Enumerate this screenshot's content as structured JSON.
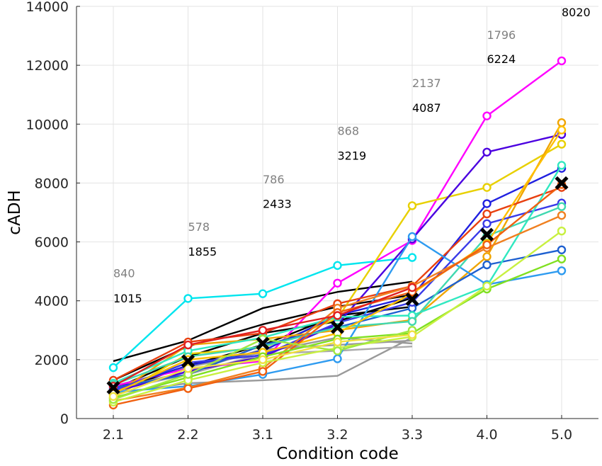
{
  "chart_data": {
    "type": "line",
    "title": "",
    "xlabel": "Condition code",
    "ylabel": "cADH",
    "categories": [
      "2.1",
      "2.2",
      "3.1",
      "3.2",
      "3.3",
      "4.0",
      "5.0"
    ],
    "ylim": [
      0,
      14000
    ],
    "yticks": [
      0,
      2000,
      4000,
      6000,
      8000,
      10000,
      12000,
      14000
    ],
    "grid": true,
    "legend": "none",
    "series": [
      {
        "color": "#ff00ff",
        "marker": true,
        "values": [
          1100,
          1700,
          1950,
          4600,
          6050,
          10280,
          12150
        ]
      },
      {
        "color": "#00e5ee",
        "marker": true,
        "values": [
          1730,
          4080,
          4240,
          5200,
          5470,
          null,
          null
        ]
      },
      {
        "color": "#e8d000",
        "marker": true,
        "values": [
          700,
          2200,
          2400,
          3400,
          7230,
          7850,
          9320
        ]
      },
      {
        "color": "#4b00e0",
        "marker": true,
        "values": [
          900,
          1600,
          2100,
          3200,
          6100,
          9050,
          9650
        ]
      },
      {
        "color": "#2020e0",
        "marker": true,
        "values": [
          1000,
          1800,
          2300,
          3500,
          4150,
          7300,
          8500
        ]
      },
      {
        "color": "#f0a500",
        "marker": true,
        "values": [
          800,
          2500,
          2700,
          3000,
          3350,
          5500,
          10050
        ]
      },
      {
        "color": "#e84010",
        "marker": true,
        "values": [
          1300,
          2600,
          2900,
          3900,
          4500,
          6950,
          7850
        ]
      },
      {
        "color": "#2e9bf0",
        "marker": true,
        "values": [
          900,
          1100,
          1500,
          2030,
          6180,
          4550,
          5020
        ]
      },
      {
        "color": "#1e60d0",
        "marker": true,
        "values": [
          1050,
          1500,
          2500,
          3100,
          3750,
          5220,
          5730
        ]
      },
      {
        "color": "#3a3ae8",
        "marker": true,
        "values": [
          950,
          1900,
          2150,
          3250,
          3950,
          6620,
          7320
        ]
      },
      {
        "color": "#30e8c0",
        "marker": true,
        "values": [
          1200,
          2300,
          2750,
          3450,
          3500,
          4500,
          8600
        ]
      },
      {
        "color": "#40d8b0",
        "marker": true,
        "values": [
          1150,
          2100,
          2450,
          3100,
          3300,
          6200,
          7200
        ]
      },
      {
        "color": "#ffc000",
        "marker": true,
        "values": [
          850,
          2000,
          2250,
          2900,
          4250,
          5950,
          9800
        ]
      },
      {
        "color": "#f08020",
        "marker": true,
        "values": [
          600,
          1050,
          1700,
          3750,
          4500,
          5800,
          6900
        ]
      },
      {
        "color": "#f06010",
        "marker": true,
        "values": [
          460,
          1020,
          1600,
          3600,
          4300,
          5900,
          7950
        ]
      },
      {
        "color": "#80e020",
        "marker": true,
        "values": [
          700,
          1400,
          2100,
          2700,
          2900,
          4400,
          5420
        ]
      },
      {
        "color": "#c8f040",
        "marker": true,
        "values": [
          560,
          1300,
          1900,
          2400,
          2780,
          4500,
          6370
        ]
      },
      {
        "color": "#a0e840",
        "marker": true,
        "values": [
          650,
          1500,
          2700,
          2300,
          3000,
          null,
          null
        ]
      },
      {
        "color": "#e02020",
        "marker": true,
        "values": [
          1100,
          2500,
          3000,
          3500,
          4450,
          null,
          null
        ]
      },
      {
        "color": "#f0e040",
        "marker": true,
        "values": [
          750,
          1700,
          2000,
          2600,
          2850,
          null,
          null
        ]
      },
      {
        "color": "#000000",
        "marker": false,
        "values": [
          1950,
          2650,
          3750,
          4300,
          4650,
          null,
          null
        ]
      },
      {
        "color": "#000000",
        "marker": false,
        "values": [
          1300,
          2450,
          3200,
          3800,
          4200,
          null,
          null
        ]
      },
      {
        "color": "#000000",
        "marker": false,
        "values": [
          1000,
          2100,
          2900,
          3300,
          4100,
          null,
          null
        ]
      },
      {
        "color": "#000000",
        "marker": false,
        "values": [
          900,
          1800,
          2500,
          3500,
          3800,
          null,
          null
        ]
      },
      {
        "color": "#999999",
        "marker": false,
        "values": [
          850,
          1200,
          1300,
          1450,
          2750,
          null,
          null
        ]
      },
      {
        "color": "#999999",
        "marker": false,
        "values": [
          1000,
          1600,
          2350,
          2500,
          2650,
          null,
          null
        ]
      },
      {
        "color": "#aaaaaa",
        "marker": false,
        "values": [
          950,
          1500,
          2200,
          2300,
          2450,
          null,
          null
        ]
      },
      {
        "color": "#999999",
        "marker": false,
        "values": [
          1100,
          1750,
          2250,
          2750,
          2550,
          null,
          null
        ]
      }
    ],
    "mean_series": {
      "color": "#000000",
      "values": [
        1050,
        1950,
        2550,
        3100,
        4050,
        6250,
        8000
      ]
    },
    "annotations": [
      {
        "text": "1015",
        "x": "2.1",
        "y": 3950,
        "color": "#000000"
      },
      {
        "text": "840",
        "x": "2.1",
        "y": 4800,
        "color": "#808080"
      },
      {
        "text": "1855",
        "x": "2.2",
        "y": 5530,
        "color": "#000000"
      },
      {
        "text": "578",
        "x": "2.2",
        "y": 6380,
        "color": "#808080"
      },
      {
        "text": "2433",
        "x": "3.1",
        "y": 7160,
        "color": "#000000"
      },
      {
        "text": "786",
        "x": "3.1",
        "y": 7990,
        "color": "#808080"
      },
      {
        "text": "3219",
        "x": "3.2",
        "y": 8790,
        "color": "#000000"
      },
      {
        "text": "868",
        "x": "3.2",
        "y": 9640,
        "color": "#808080"
      },
      {
        "text": "4087",
        "x": "3.3",
        "y": 10420,
        "color": "#000000"
      },
      {
        "text": "2137",
        "x": "3.3",
        "y": 11260,
        "color": "#808080"
      },
      {
        "text": "6224",
        "x": "4.0",
        "y": 12070,
        "color": "#000000"
      },
      {
        "text": "1796",
        "x": "4.0",
        "y": 12890,
        "color": "#808080"
      },
      {
        "text": "8020",
        "x": "5.0",
        "y": 13660,
        "color": "#000000"
      }
    ]
  }
}
